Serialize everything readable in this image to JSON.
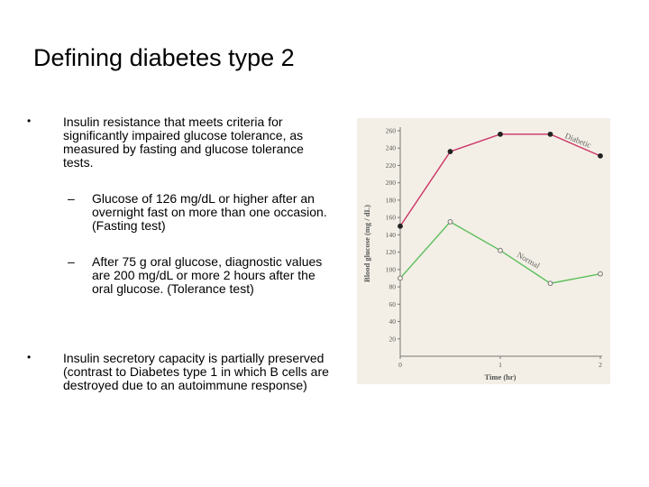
{
  "slide": {
    "title": "Defining diabetes type 2",
    "bullets": [
      {
        "mark": "•",
        "text": "Insulin resistance that meets criteria for significantly impaired glucose tolerance, as measured by fasting and glucose tolerance tests."
      },
      {
        "mark": "•",
        "text": "Insulin secretory capacity is partially preserved (contrast to Diabetes type 1 in which B cells are destroyed due to an autoimmune response)"
      }
    ],
    "sub_bullets": [
      {
        "mark": "–",
        "text": "Glucose of 126 mg/dL or higher after an overnight fast on more than one occasion. (Fasting test)"
      },
      {
        "mark": "–",
        "text": "After 75 g oral glucose, diagnostic values are 200 mg/dL or more 2 hours after the oral glucose. (Tolerance test)"
      }
    ]
  },
  "chart_data": {
    "type": "line",
    "xlabel": "Time (hr)",
    "ylabel": "Blood glucose (mg / dL)",
    "xlim": [
      0,
      2
    ],
    "ylim": [
      0,
      260
    ],
    "xticks": [
      "0",
      "1",
      "2"
    ],
    "yticks": [
      20,
      40,
      60,
      80,
      100,
      120,
      140,
      160,
      180,
      200,
      220,
      240,
      260
    ],
    "grid": false,
    "series": [
      {
        "name": "Diabetic",
        "color": "#cc3366",
        "marker": "filled",
        "x": [
          0,
          0.5,
          1,
          1.5,
          2
        ],
        "y": [
          150,
          236,
          256,
          256,
          231
        ]
      },
      {
        "name": "Normal",
        "color": "#5bbf5b",
        "marker": "open",
        "x": [
          0,
          0.5,
          1,
          1.5,
          2
        ],
        "y": [
          90,
          155,
          122,
          84,
          95
        ]
      }
    ]
  }
}
